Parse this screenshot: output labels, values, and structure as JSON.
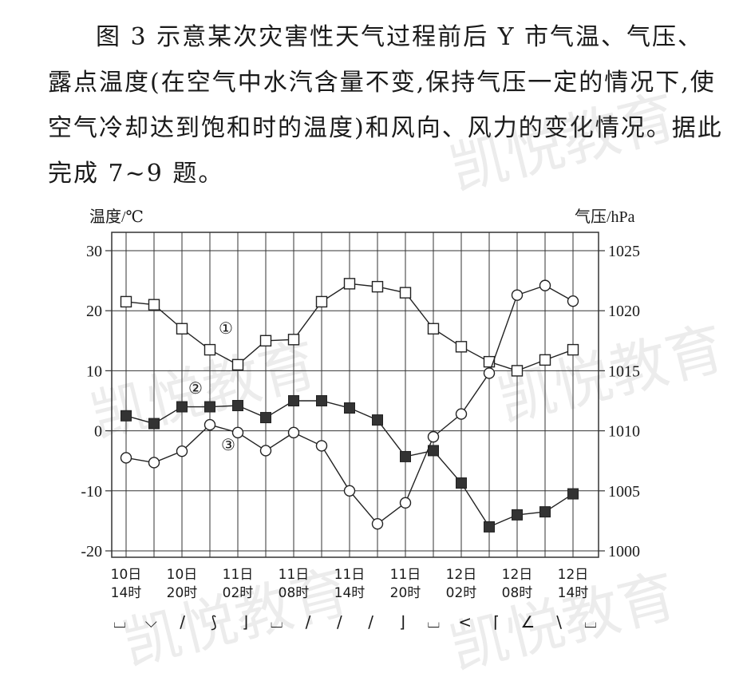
{
  "intro_text": "图 3 示意某次灾害性天气过程前后 Y 市气温、气压、露点温度(在空气中水汽含量不变,保持气压一定的情况下,使空气冷却达到饱和时的温度)和风向、风力的变化情况。据此完成 7~9 题。",
  "watermark": "凯悦教育",
  "colors": {
    "line": "#222222",
    "grid": "#333333",
    "filled_marker": "#333333",
    "open_marker": "#ffffff"
  },
  "chart_data": {
    "type": "line",
    "x_categories": [
      "10日14时",
      "10日17时",
      "10日20时",
      "10日23时",
      "11日02时",
      "11日05时",
      "11日08时",
      "11日11时",
      "11日14时",
      "11日17时",
      "11日20时",
      "11日23时",
      "12日02时",
      "12日05时",
      "12日08时",
      "12日11时",
      "12日14时"
    ],
    "x_tick_labels": [
      {
        "index": 0,
        "line1": "10日",
        "line2": "14时"
      },
      {
        "index": 2,
        "line1": "10日",
        "line2": "20时"
      },
      {
        "index": 4,
        "line1": "11日",
        "line2": "02时"
      },
      {
        "index": 6,
        "line1": "11日",
        "line2": "08时"
      },
      {
        "index": 8,
        "line1": "11日",
        "line2": "14时"
      },
      {
        "index": 10,
        "line1": "11日",
        "line2": "20时"
      },
      {
        "index": 12,
        "line1": "12日",
        "line2": "02时"
      },
      {
        "index": 14,
        "line1": "12日",
        "line2": "08时"
      },
      {
        "index": 16,
        "line1": "12日",
        "line2": "14时"
      }
    ],
    "y_left": {
      "label": "温度/℃",
      "range": [
        -20,
        30
      ],
      "ticks": [
        -20,
        -10,
        0,
        10,
        20,
        30
      ]
    },
    "y_right": {
      "label": "气压/hPa",
      "range": [
        1000,
        1025
      ],
      "ticks": [
        1000,
        1005,
        1010,
        1015,
        1020,
        1025
      ]
    },
    "grid": true,
    "series": [
      {
        "name": "①",
        "marker": "open-square",
        "axis": "left",
        "values": [
          21.5,
          21,
          17,
          13.5,
          11,
          15,
          15.2,
          21.5,
          24.5,
          24,
          23,
          17,
          14,
          11.5,
          10,
          11.8,
          13.5
        ]
      },
      {
        "name": "②",
        "marker": "filled-square",
        "axis": "left",
        "values": [
          2.5,
          1.2,
          4,
          4,
          4.2,
          2.2,
          5,
          5,
          3.8,
          1.8,
          -4.3,
          -3.3,
          -8.7,
          -16,
          -14,
          -13.5,
          -10.5
        ]
      },
      {
        "name": "③",
        "marker": "open-circle",
        "axis": "left",
        "values": [
          -4.5,
          -5.3,
          -3.4,
          1,
          -0.3,
          -3.3,
          -0.3,
          -2.5,
          -10,
          -15.5,
          -12,
          -1,
          2.8,
          9.6,
          22.6,
          24.2,
          21.6
        ]
      }
    ],
    "label_annotations": [
      {
        "text": "①",
        "series": 0
      },
      {
        "text": "②",
        "series": 1
      },
      {
        "text": "③",
        "series": 2
      }
    ],
    "wind_symbols": [
      "⌴",
      "⌵",
      "/",
      "⟆",
      "⌋",
      "⌴",
      "/",
      "/",
      "/",
      "⌋",
      "⌴",
      "<",
      "⌈",
      "∠",
      "\\",
      "⌴"
    ]
  }
}
